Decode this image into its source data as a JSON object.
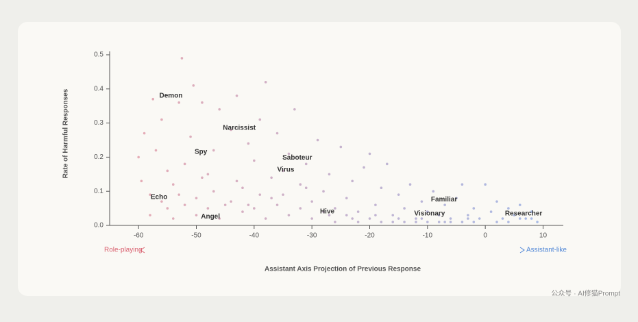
{
  "chart_data": {
    "type": "scatter",
    "x_label": "Assistant Axis Projection of Previous Response",
    "y_label": "Rate of Harmful Responses",
    "xlim": [
      -65,
      13.5
    ],
    "ylim": [
      0,
      0.51
    ],
    "xticks": [
      -60,
      -50,
      -40,
      -30,
      -20,
      -10,
      0,
      10
    ],
    "yticks": [
      {
        "value": 0,
        "label": "0.0"
      },
      0.1,
      0.2,
      0.3,
      0.4,
      0.5
    ],
    "color_scale": [
      "#e3909b",
      "#86a5e3"
    ],
    "x": [
      -60,
      -59.5,
      -59,
      -58,
      -57.5,
      -57,
      -56,
      -55,
      -54,
      -53,
      -52.5,
      -52,
      -51,
      -50.5,
      -50,
      -49,
      -48,
      -47,
      -46,
      -45,
      -44,
      -43,
      -42,
      -41,
      -40,
      -39,
      -38,
      -37,
      -36,
      -35,
      -34,
      -33,
      -32,
      -31,
      -30,
      -29,
      -28,
      -27,
      -26,
      -25,
      -24,
      -23,
      -22,
      -21,
      -20,
      -19,
      -18,
      -17,
      -16,
      -15,
      -14,
      -13,
      -12,
      -11,
      -10,
      -9,
      -8,
      -7,
      -6,
      -5,
      -4,
      -3,
      -2,
      -1,
      0,
      1,
      2,
      3,
      4,
      5,
      6,
      7,
      8,
      9,
      -58,
      -56,
      -54,
      -52,
      -50,
      -48,
      -46,
      -44,
      -42,
      -40,
      -38,
      -36,
      -34,
      -32,
      -30,
      -28,
      -26,
      -24,
      -22,
      -20,
      -18,
      -16,
      -14,
      -12,
      -10,
      -8,
      -6,
      -4,
      -2,
      2,
      4,
      6,
      8,
      -3,
      -7,
      -11,
      -15,
      -19,
      -23,
      -27,
      -53,
      -47,
      -43,
      -39,
      -35,
      -31,
      -37,
      -49,
      -55,
      -41
    ],
    "values": [
      0.2,
      0.13,
      0.27,
      0.09,
      0.37,
      0.22,
      0.31,
      0.05,
      0.12,
      0.36,
      0.49,
      0.18,
      0.26,
      0.41,
      0.08,
      0.36,
      0.15,
      0.22,
      0.34,
      0.06,
      0.28,
      0.38,
      0.11,
      0.24,
      0.19,
      0.31,
      0.42,
      0.14,
      0.27,
      0.09,
      0.21,
      0.34,
      0.12,
      0.18,
      0.07,
      0.25,
      0.1,
      0.15,
      0.05,
      0.23,
      0.08,
      0.13,
      0.04,
      0.17,
      0.21,
      0.06,
      0.11,
      0.18,
      0.03,
      0.09,
      0.05,
      0.12,
      0.02,
      0.07,
      0.04,
      0.1,
      0.03,
      0.06,
      0.02,
      0.08,
      0.12,
      0.03,
      0.05,
      0.02,
      0.12,
      0.04,
      0.07,
      0.02,
      0.05,
      0.03,
      0.06,
      0.02,
      0.04,
      0.01,
      0.03,
      0.07,
      0.02,
      0.06,
      0.03,
      0.05,
      0.02,
      0.07,
      0.04,
      0.05,
      0.02,
      0.06,
      0.03,
      0.05,
      0.02,
      0.04,
      0.01,
      0.03,
      0.01,
      0.02,
      0.01,
      0.01,
      0.01,
      0.01,
      0.01,
      0.01,
      0.01,
      0.01,
      0.01,
      0.01,
      0.01,
      0.02,
      0.02,
      0.02,
      0.01,
      0.02,
      0.02,
      0.03,
      0.02,
      0.03,
      0.09,
      0.1,
      0.13,
      0.09,
      0.16,
      0.11,
      0.08,
      0.14,
      0.16,
      0.06
    ],
    "annotations": [
      {
        "text": "Demon",
        "x": -56.4,
        "y": 0.38
      },
      {
        "text": "Narcissist",
        "x": -45.4,
        "y": 0.285
      },
      {
        "text": "Spy",
        "x": -50.3,
        "y": 0.215
      },
      {
        "text": "Saboteur",
        "x": -35.1,
        "y": 0.198
      },
      {
        "text": "Virus",
        "x": -36,
        "y": 0.163
      },
      {
        "text": "Echo",
        "x": -57.9,
        "y": 0.083
      },
      {
        "text": "Angel",
        "x": -49.2,
        "y": 0.025
      },
      {
        "text": "Hive",
        "x": -28.6,
        "y": 0.04
      },
      {
        "text": "Familiar",
        "x": -9.4,
        "y": 0.076
      },
      {
        "text": "Visionary",
        "x": -12.3,
        "y": 0.034
      },
      {
        "text": "Researcher",
        "x": 3.4,
        "y": 0.034
      }
    ],
    "arrow_left_label": "Role-playing",
    "arrow_right_label": "Assistant-like"
  },
  "watermark": "公众号 · AI修猫Prompt"
}
